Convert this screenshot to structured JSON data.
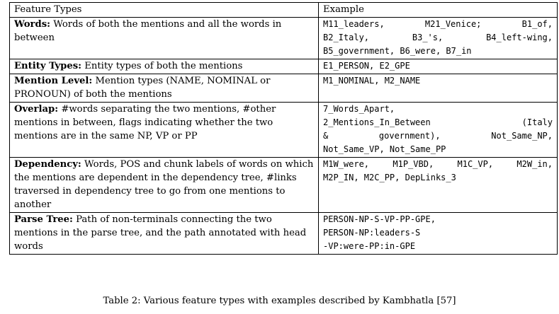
{
  "table": {
    "headers": [
      "Feature Types",
      "Example"
    ],
    "rows": [
      {
        "name": "Words:",
        "desc": "Words of both the mentions and all the words in between",
        "example_lines": [
          "M11_leaders, M21_Venice; B1_of,",
          "B2_Italy, B3_'s, B4_left-wing,",
          "B5_government, B6_were, B7_in"
        ]
      },
      {
        "name": "Entity Types:",
        "desc": "Entity types of both the mentions",
        "example_lines": [
          "E1_PERSON, E2_GPE"
        ]
      },
      {
        "name": "Mention Level:",
        "desc": "Mention types (NAME, NOMINAL or PRONOUN) of both the mentions",
        "example_lines": [
          "M1_NOMINAL, M2_NAME"
        ]
      },
      {
        "name": "Overlap:",
        "desc": "#words separating the two mentions, #other mentions in between, flags indicating whether the two mentions are in the same NP, VP or PP",
        "example_lines": [
          "7_Words_Apart,",
          "2_Mentions_In_Between (Italy",
          "& government), Not_Same_NP,",
          "Not_Same_VP, Not_Same_PP"
        ]
      },
      {
        "name": "Dependency:",
        "desc": "Words, POS and chunk labels of words on which the mentions are dependent in the dependency tree, #links traversed in dependency tree to go from one mentions to another",
        "example_lines": [
          "M1W_were, M1P_VBD, M1C_VP, M2W_in,",
          "M2P_IN, M2C_PP, DepLinks_3"
        ]
      },
      {
        "name": "Parse Tree:",
        "desc": "Path of non-terminals connecting the two mentions in the parse tree, and the path annotated with head words",
        "example_lines": [
          "PERSON-NP-S-VP-PP-GPE,",
          "PERSON-NP:leaders-S",
          "-VP:were-PP:in-GPE"
        ]
      }
    ]
  },
  "caption": "Table 2: Various feature types with examples described by Kambhatla [57]"
}
